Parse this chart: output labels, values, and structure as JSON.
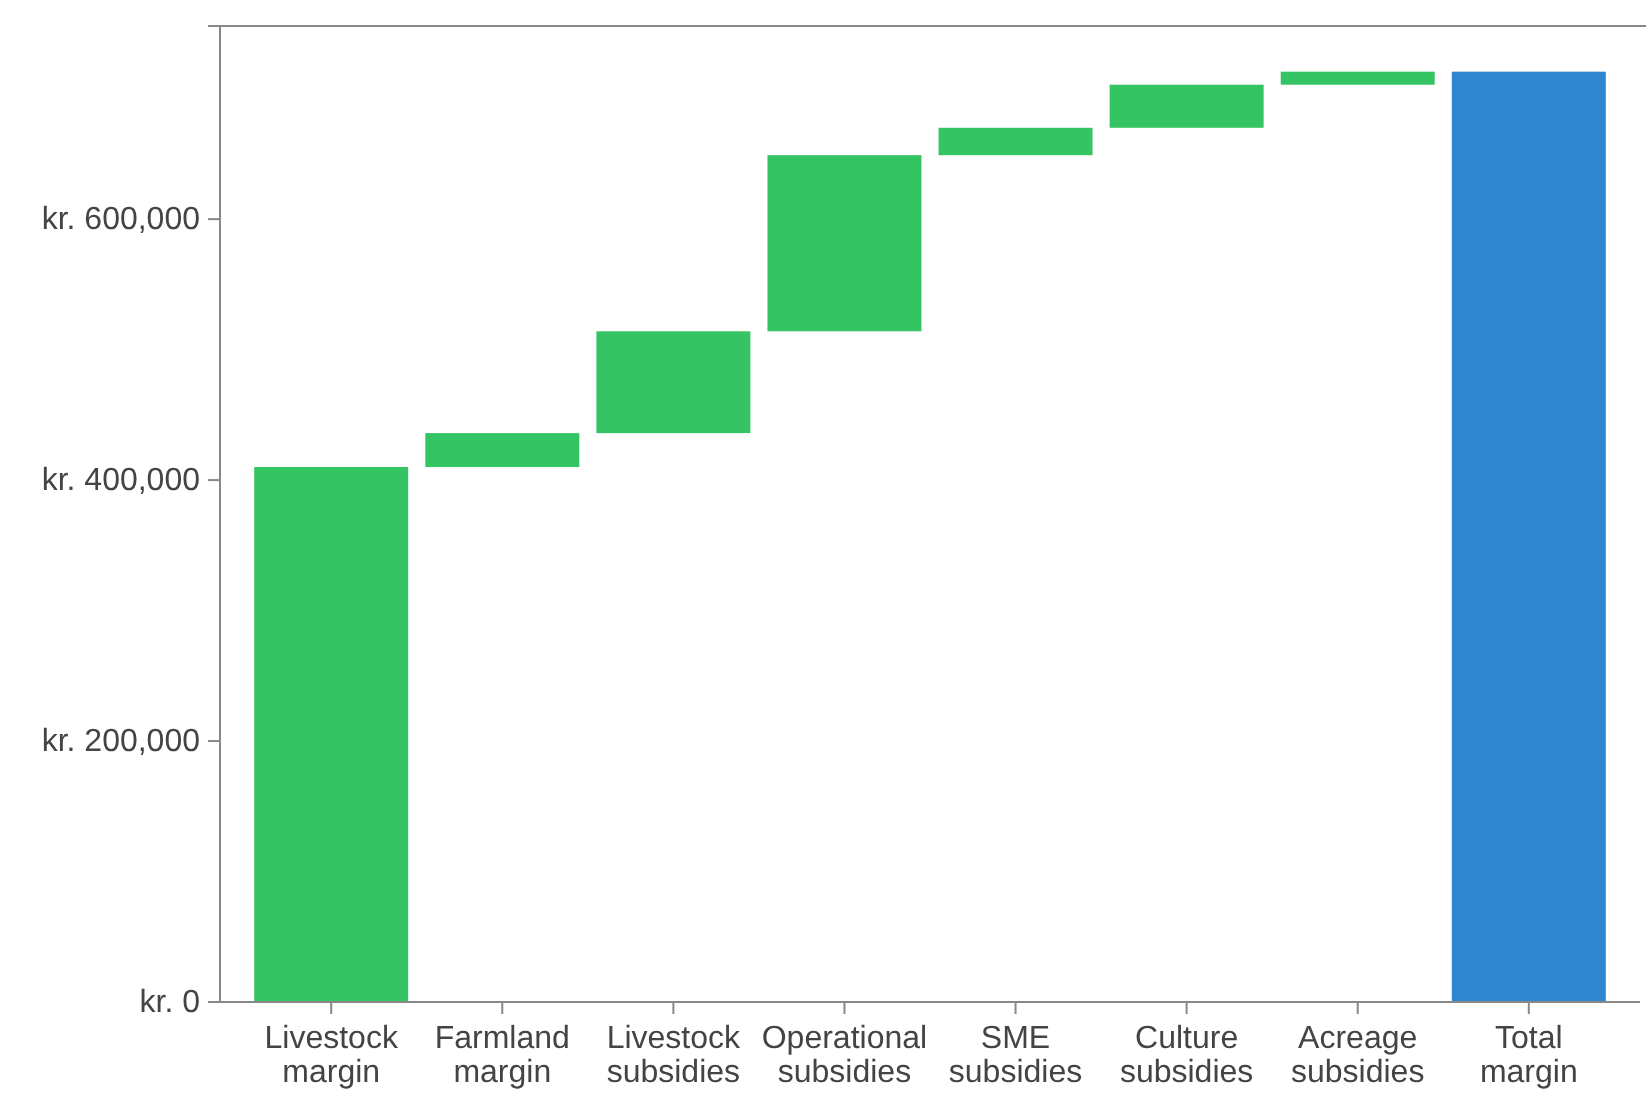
{
  "chart_data": {
    "type": "bar",
    "categories": [
      "Livestock margin",
      "Farmland margin",
      "Livestock subsidies",
      "Operational subsidies",
      "SME subsidies",
      "Culture subsidies",
      "Acreage subsidies",
      "Total margin"
    ],
    "values": [
      410000,
      26000,
      78000,
      135000,
      21000,
      33000,
      10000,
      713000
    ],
    "base": [
      0,
      410000,
      436000,
      514000,
      649000,
      670000,
      703000,
      0
    ],
    "colors": [
      "#34c463",
      "#34c463",
      "#34c463",
      "#34c463",
      "#34c463",
      "#34c463",
      "#34c463",
      "#2e86d0"
    ],
    "ylim": [
      0,
      748000
    ],
    "yticks": [
      {
        "value": 0,
        "label": "kr. 0"
      },
      {
        "value": 200000,
        "label": "kr. 200,000"
      },
      {
        "value": 400000,
        "label": "kr. 400,000"
      },
      {
        "value": 600000,
        "label": "kr. 600,000"
      }
    ],
    "grid": false
  }
}
